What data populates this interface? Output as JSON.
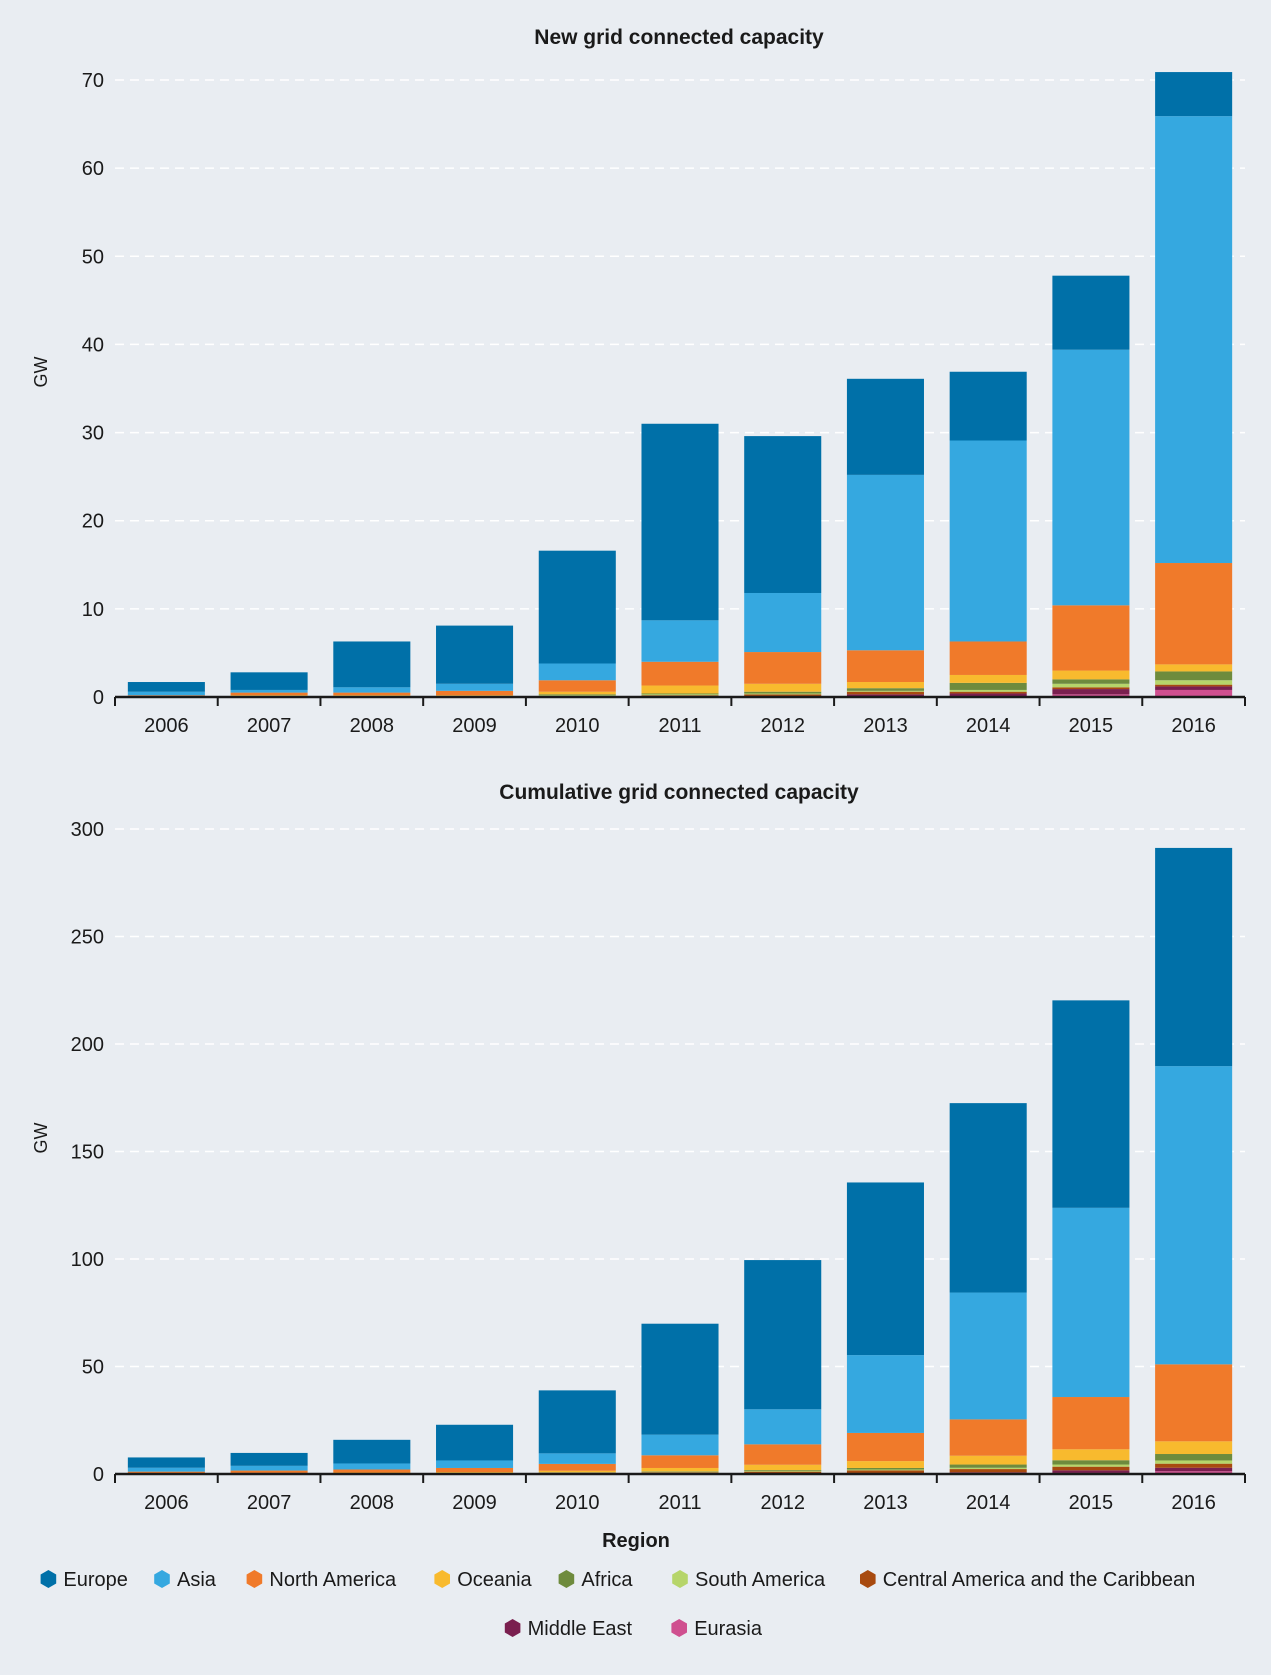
{
  "colors": {
    "Europe": "#0070a8",
    "Asia": "#35a8e0",
    "North America": "#f07a2a",
    "Oceania": "#f8ba2e",
    "Africa": "#6e8b3d",
    "South America": "#b6d56a",
    "Central America and the Caribbean": "#a84a0f",
    "Middle East": "#7a1f4f",
    "Eurasia": "#cf4f8f"
  },
  "xlabel": "Region",
  "legend": [
    "Europe",
    "Asia",
    "North America",
    "Oceania",
    "Africa",
    "South America",
    "Central America and the Caribbean",
    "Middle East",
    "Eurasia"
  ],
  "chart_data": [
    {
      "type": "bar",
      "stacked": true,
      "title": "New grid connected capacity",
      "ylabel": "GW",
      "ylim": [
        0,
        70
      ],
      "yticks": [
        0,
        10,
        20,
        30,
        40,
        50,
        60,
        70
      ],
      "grid": true,
      "categories": [
        "2006",
        "2007",
        "2008",
        "2009",
        "2010",
        "2011",
        "2012",
        "2013",
        "2014",
        "2015",
        "2016"
      ],
      "series": [
        {
          "name": "Eurasia",
          "values": [
            0,
            0,
            0,
            0,
            0,
            0,
            0,
            0.1,
            0.1,
            0.3,
            0.8
          ]
        },
        {
          "name": "Middle East",
          "values": [
            0,
            0,
            0,
            0,
            0,
            0,
            0.1,
            0.2,
            0.3,
            0.6,
            0.4
          ]
        },
        {
          "name": "Central America and the Caribbean",
          "values": [
            0.1,
            0.1,
            0.1,
            0.1,
            0.1,
            0.2,
            0.2,
            0.3,
            0.2,
            0.2,
            0.2
          ]
        },
        {
          "name": "South America",
          "values": [
            0,
            0,
            0,
            0,
            0.1,
            0.1,
            0.1,
            0.1,
            0.2,
            0.4,
            0.5
          ]
        },
        {
          "name": "Africa",
          "values": [
            0,
            0,
            0,
            0,
            0.1,
            0.1,
            0.2,
            0.3,
            0.8,
            0.5,
            1.0
          ]
        },
        {
          "name": "Oceania",
          "values": [
            0,
            0.1,
            0.1,
            0.1,
            0.3,
            0.9,
            0.9,
            0.7,
            0.9,
            1.0,
            0.8
          ]
        },
        {
          "name": "North America",
          "values": [
            0.1,
            0.3,
            0.3,
            0.5,
            1.3,
            2.7,
            3.6,
            3.6,
            3.8,
            7.4,
            11.5
          ]
        },
        {
          "name": "Asia",
          "values": [
            0.4,
            0.3,
            0.6,
            0.8,
            1.9,
            4.7,
            6.7,
            19.9,
            22.8,
            29.0,
            50.7
          ]
        },
        {
          "name": "Europe",
          "values": [
            1.1,
            2.0,
            5.2,
            6.6,
            12.8,
            22.3,
            17.8,
            10.9,
            7.8,
            8.4,
            5.0
          ]
        }
      ]
    },
    {
      "type": "bar",
      "stacked": true,
      "title": "Cumulative grid connected capacity",
      "ylabel": "GW",
      "ylim": [
        0,
        300
      ],
      "yticks": [
        0,
        50,
        100,
        150,
        200,
        250,
        300
      ],
      "grid": true,
      "categories": [
        "2006",
        "2007",
        "2008",
        "2009",
        "2010",
        "2011",
        "2012",
        "2013",
        "2014",
        "2015",
        "2016"
      ],
      "series": [
        {
          "name": "Eurasia",
          "values": [
            0,
            0,
            0,
            0,
            0,
            0,
            0,
            0.1,
            0.2,
            0.5,
            1.3
          ]
        },
        {
          "name": "Middle East",
          "values": [
            0,
            0,
            0,
            0,
            0,
            0,
            0.1,
            0.3,
            0.6,
            1.2,
            1.6
          ]
        },
        {
          "name": "Central America and the Caribbean",
          "values": [
            0.2,
            0.3,
            0.4,
            0.5,
            0.6,
            0.8,
            1.0,
            1.3,
            1.5,
            1.7,
            1.9
          ]
        },
        {
          "name": "South America",
          "values": [
            0,
            0,
            0,
            0,
            0.1,
            0.2,
            0.3,
            0.4,
            0.6,
            1.0,
            1.5
          ]
        },
        {
          "name": "Africa",
          "values": [
            0,
            0,
            0,
            0,
            0.1,
            0.2,
            0.4,
            0.7,
            1.5,
            2.0,
            3.0
          ]
        },
        {
          "name": "Oceania",
          "values": [
            0.1,
            0.2,
            0.3,
            0.4,
            0.7,
            1.6,
            2.5,
            3.2,
            4.1,
            5.1,
            5.9
          ]
        },
        {
          "name": "North America",
          "values": [
            0.8,
            1.1,
            1.4,
            1.9,
            3.2,
            5.9,
            9.5,
            13.1,
            16.9,
            24.3,
            35.8
          ]
        },
        {
          "name": "Asia",
          "values": [
            1.8,
            2.2,
            2.8,
            3.5,
            4.9,
            9.6,
            16.3,
            36.2,
            59.0,
            88.0,
            138.7
          ]
        },
        {
          "name": "Europe",
          "values": [
            4.8,
            6.0,
            11.0,
            16.6,
            29.3,
            51.6,
            69.4,
            80.3,
            88.1,
            96.5,
            101.5
          ]
        }
      ]
    }
  ]
}
